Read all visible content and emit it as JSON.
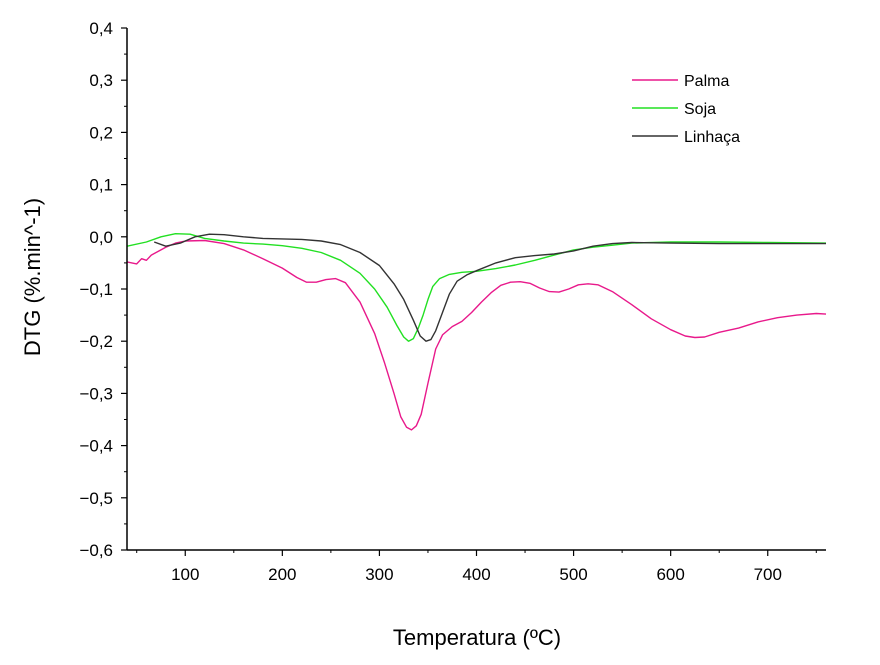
{
  "chart_data": {
    "type": "line",
    "xlabel": "Temperatura (ºC)",
    "ylabel": "DTG (%.min^-1)",
    "xlim": [
      40,
      760
    ],
    "ylim": [
      -0.6,
      0.4
    ],
    "x_ticks": [
      100,
      200,
      300,
      400,
      500,
      600,
      700
    ],
    "x_tick_labels": [
      "100",
      "200",
      "300",
      "400",
      "500",
      "600",
      "700"
    ],
    "y_ticks": [
      0.4,
      0.3,
      0.2,
      0.1,
      0.0,
      -0.1,
      -0.2,
      -0.3,
      -0.4,
      -0.5,
      -0.6
    ],
    "y_tick_labels": [
      "0,4",
      "0,3",
      "0,2",
      "0,1",
      "0,0",
      "−0,1",
      "−0,2",
      "−0,3",
      "−0,4",
      "−0,5",
      "−0,6"
    ],
    "legend_position": "top-right",
    "grid": false,
    "series": [
      {
        "name": "Palma",
        "color": "#e8198b",
        "points": [
          [
            40,
            -0.048
          ],
          [
            50,
            -0.052
          ],
          [
            55,
            -0.042
          ],
          [
            60,
            -0.045
          ],
          [
            65,
            -0.035
          ],
          [
            70,
            -0.03
          ],
          [
            80,
            -0.02
          ],
          [
            90,
            -0.012
          ],
          [
            100,
            -0.008
          ],
          [
            120,
            -0.007
          ],
          [
            140,
            -0.013
          ],
          [
            160,
            -0.025
          ],
          [
            180,
            -0.042
          ],
          [
            200,
            -0.06
          ],
          [
            215,
            -0.078
          ],
          [
            225,
            -0.087
          ],
          [
            235,
            -0.087
          ],
          [
            245,
            -0.082
          ],
          [
            255,
            -0.08
          ],
          [
            265,
            -0.088
          ],
          [
            280,
            -0.125
          ],
          [
            295,
            -0.185
          ],
          [
            305,
            -0.24
          ],
          [
            315,
            -0.3
          ],
          [
            322,
            -0.345
          ],
          [
            328,
            -0.365
          ],
          [
            333,
            -0.37
          ],
          [
            338,
            -0.362
          ],
          [
            343,
            -0.34
          ],
          [
            350,
            -0.28
          ],
          [
            358,
            -0.215
          ],
          [
            365,
            -0.188
          ],
          [
            375,
            -0.172
          ],
          [
            385,
            -0.162
          ],
          [
            395,
            -0.145
          ],
          [
            405,
            -0.125
          ],
          [
            415,
            -0.107
          ],
          [
            425,
            -0.093
          ],
          [
            435,
            -0.087
          ],
          [
            445,
            -0.086
          ],
          [
            455,
            -0.089
          ],
          [
            465,
            -0.098
          ],
          [
            475,
            -0.105
          ],
          [
            485,
            -0.106
          ],
          [
            495,
            -0.1
          ],
          [
            505,
            -0.092
          ],
          [
            515,
            -0.09
          ],
          [
            525,
            -0.092
          ],
          [
            540,
            -0.105
          ],
          [
            560,
            -0.13
          ],
          [
            580,
            -0.157
          ],
          [
            600,
            -0.178
          ],
          [
            615,
            -0.19
          ],
          [
            625,
            -0.193
          ],
          [
            635,
            -0.192
          ],
          [
            650,
            -0.183
          ],
          [
            670,
            -0.175
          ],
          [
            690,
            -0.163
          ],
          [
            710,
            -0.155
          ],
          [
            730,
            -0.15
          ],
          [
            750,
            -0.147
          ],
          [
            760,
            -0.148
          ]
        ]
      },
      {
        "name": "Soja",
        "color": "#22e022",
        "points": [
          [
            40,
            -0.018
          ],
          [
            60,
            -0.01
          ],
          [
            75,
            0.0
          ],
          [
            90,
            0.006
          ],
          [
            105,
            0.005
          ],
          [
            120,
            -0.003
          ],
          [
            140,
            -0.008
          ],
          [
            160,
            -0.012
          ],
          [
            180,
            -0.014
          ],
          [
            200,
            -0.017
          ],
          [
            220,
            -0.022
          ],
          [
            240,
            -0.03
          ],
          [
            260,
            -0.045
          ],
          [
            280,
            -0.07
          ],
          [
            295,
            -0.1
          ],
          [
            308,
            -0.135
          ],
          [
            318,
            -0.17
          ],
          [
            325,
            -0.192
          ],
          [
            330,
            -0.2
          ],
          [
            335,
            -0.195
          ],
          [
            340,
            -0.175
          ],
          [
            345,
            -0.15
          ],
          [
            350,
            -0.12
          ],
          [
            355,
            -0.095
          ],
          [
            362,
            -0.08
          ],
          [
            372,
            -0.072
          ],
          [
            385,
            -0.068
          ],
          [
            400,
            -0.066
          ],
          [
            420,
            -0.061
          ],
          [
            440,
            -0.054
          ],
          [
            460,
            -0.045
          ],
          [
            480,
            -0.035
          ],
          [
            500,
            -0.025
          ],
          [
            520,
            -0.02
          ],
          [
            540,
            -0.016
          ],
          [
            560,
            -0.012
          ],
          [
            600,
            -0.01
          ],
          [
            650,
            -0.01
          ],
          [
            700,
            -0.011
          ],
          [
            760,
            -0.012
          ]
        ]
      },
      {
        "name": "Linhaça",
        "color": "#333333",
        "points": [
          [
            68,
            -0.01
          ],
          [
            80,
            -0.018
          ],
          [
            95,
            -0.012
          ],
          [
            110,
            0.0
          ],
          [
            125,
            0.005
          ],
          [
            140,
            0.004
          ],
          [
            160,
            0.0
          ],
          [
            180,
            -0.003
          ],
          [
            200,
            -0.004
          ],
          [
            220,
            -0.005
          ],
          [
            240,
            -0.008
          ],
          [
            260,
            -0.015
          ],
          [
            280,
            -0.03
          ],
          [
            300,
            -0.055
          ],
          [
            315,
            -0.09
          ],
          [
            325,
            -0.12
          ],
          [
            335,
            -0.16
          ],
          [
            342,
            -0.19
          ],
          [
            348,
            -0.2
          ],
          [
            353,
            -0.197
          ],
          [
            358,
            -0.18
          ],
          [
            365,
            -0.145
          ],
          [
            372,
            -0.11
          ],
          [
            380,
            -0.085
          ],
          [
            390,
            -0.073
          ],
          [
            400,
            -0.065
          ],
          [
            420,
            -0.05
          ],
          [
            440,
            -0.04
          ],
          [
            460,
            -0.036
          ],
          [
            480,
            -0.033
          ],
          [
            500,
            -0.027
          ],
          [
            520,
            -0.018
          ],
          [
            540,
            -0.013
          ],
          [
            560,
            -0.011
          ],
          [
            600,
            -0.012
          ],
          [
            650,
            -0.013
          ],
          [
            700,
            -0.013
          ],
          [
            760,
            -0.013
          ]
        ]
      }
    ]
  }
}
